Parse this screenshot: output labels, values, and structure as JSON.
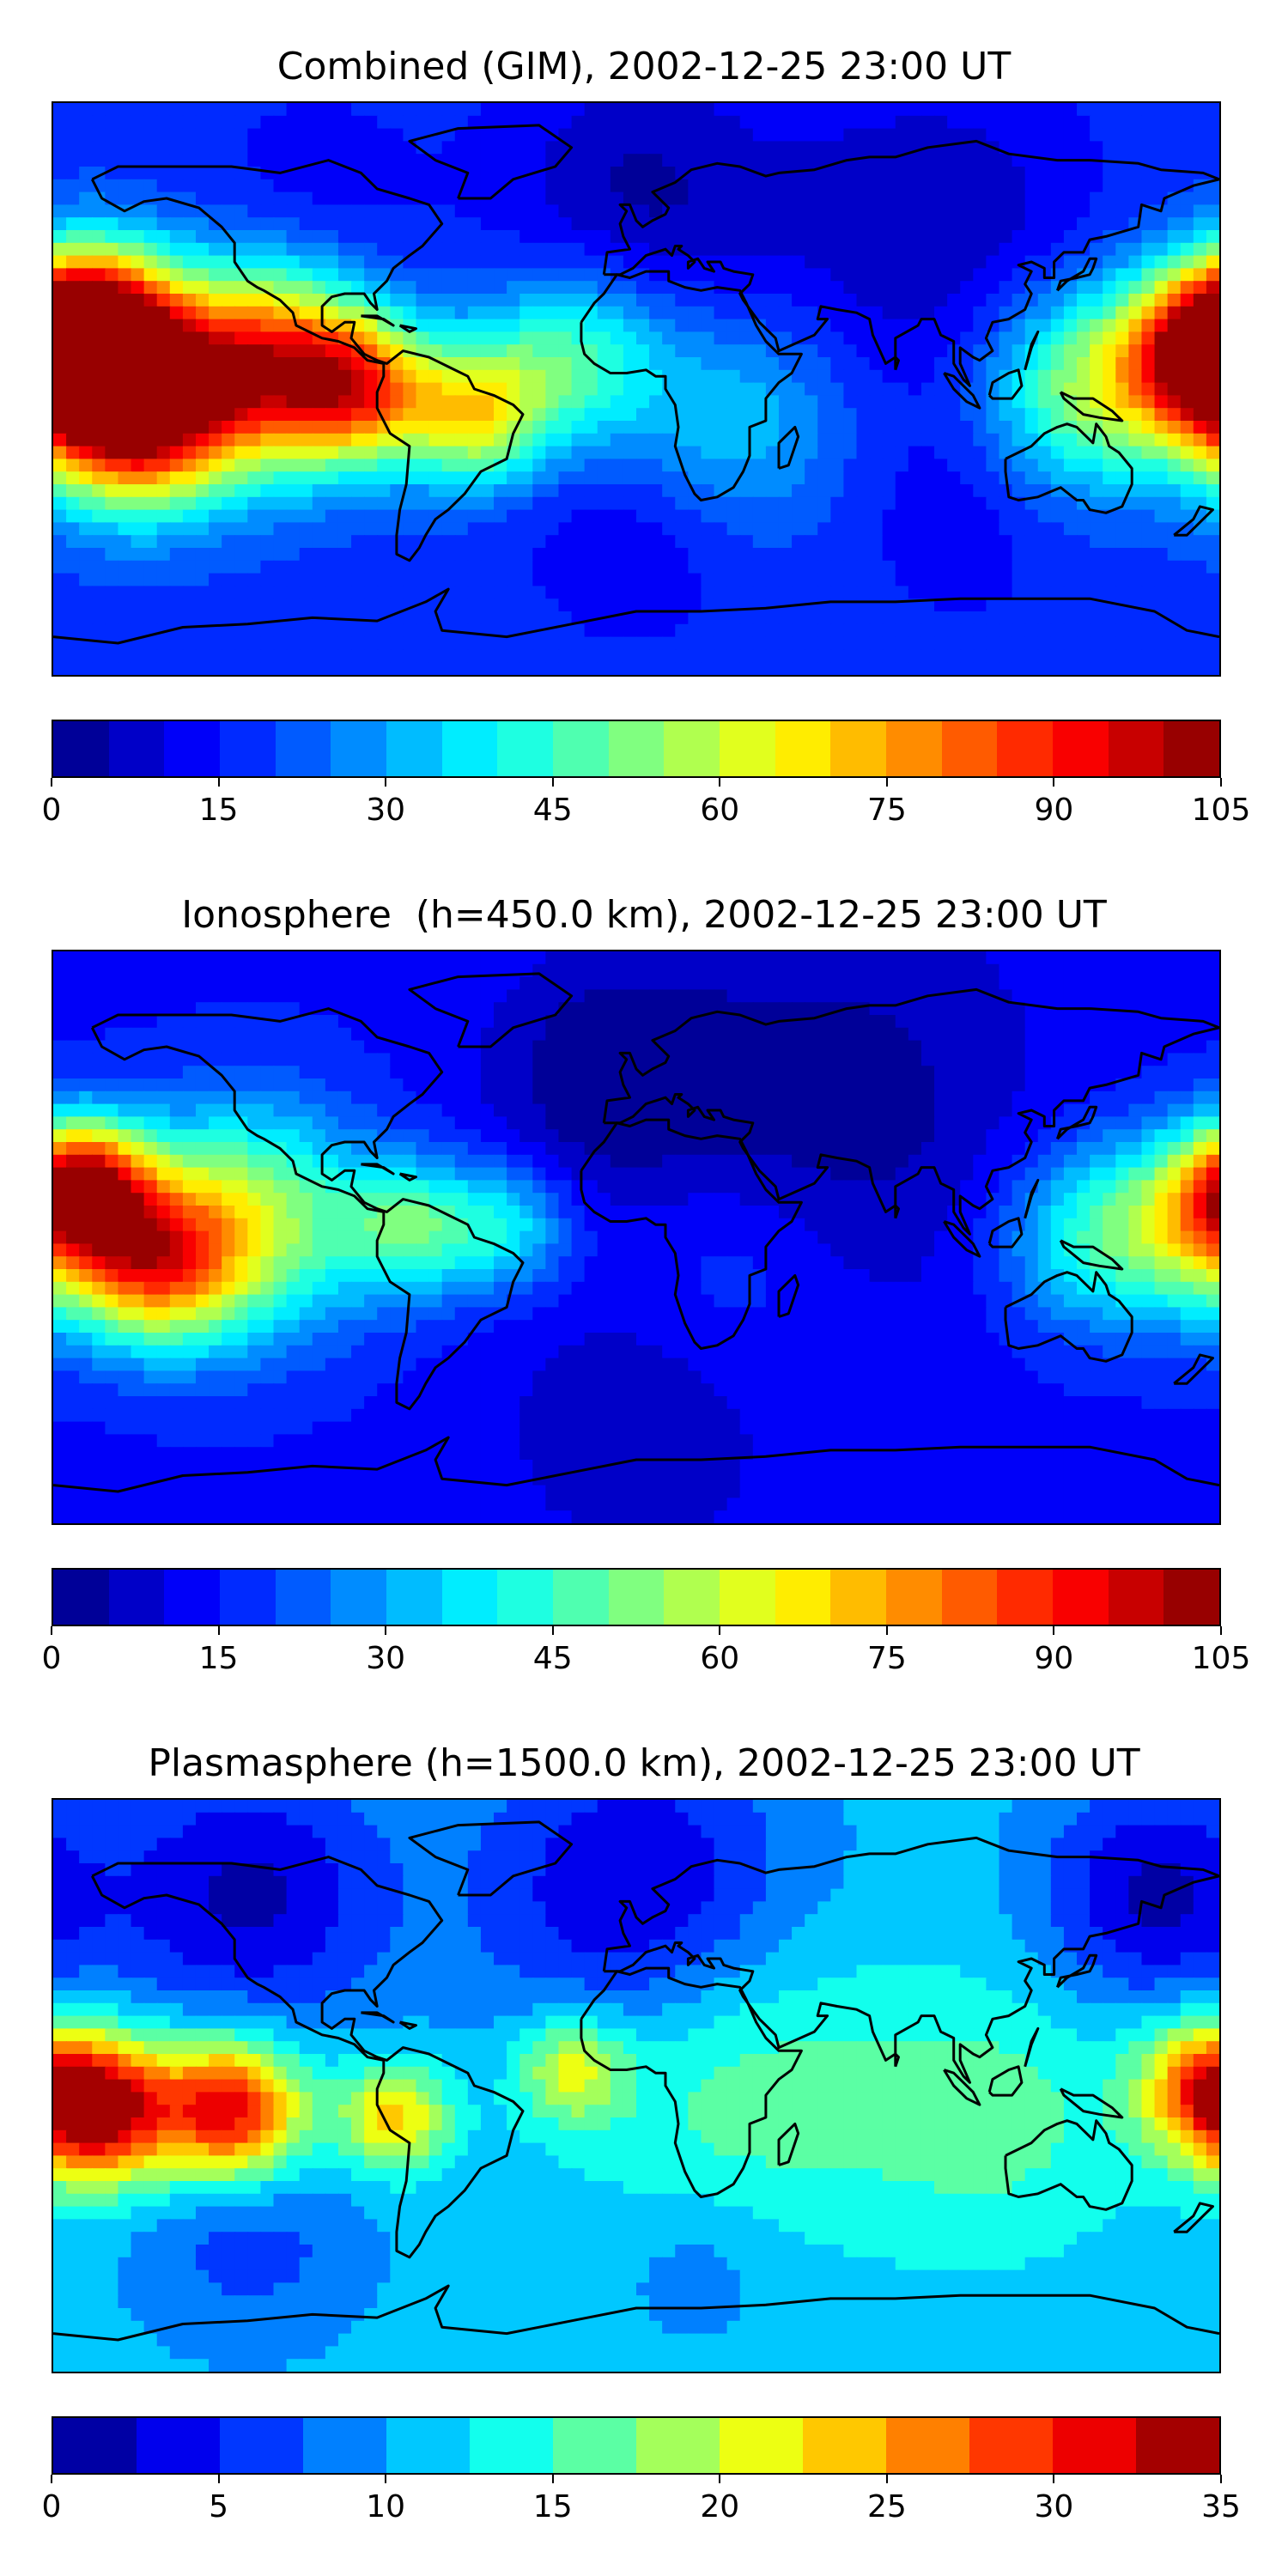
{
  "chart_data": [
    {
      "type": "heatmap",
      "title": "Combined (GIM), 2002-12-25 23:00 UT",
      "colorbar": {
        "min": 0,
        "max": 105,
        "step": 5,
        "ticks": [
          "0",
          "15",
          "30",
          "45",
          "60",
          "75",
          "90",
          "105"
        ],
        "tick_values": [
          0,
          15,
          30,
          45,
          60,
          75,
          90,
          105
        ]
      },
      "background_level": 18,
      "features": [
        {
          "lon": -167,
          "lat": 19,
          "value": 100,
          "spread": 18
        },
        {
          "lon": -155,
          "lat": -8,
          "value": 102,
          "spread": 20
        },
        {
          "lon": -115,
          "lat": 7,
          "value": 88,
          "spread": 22
        },
        {
          "lon": -85,
          "lat": 0,
          "value": 70,
          "spread": 16
        },
        {
          "lon": -50,
          "lat": -8,
          "value": 62,
          "spread": 15
        },
        {
          "lon": -20,
          "lat": 10,
          "value": 48,
          "spread": 20
        },
        {
          "lon": 175,
          "lat": 10,
          "value": 78,
          "spread": 18
        },
        {
          "lon": 140,
          "lat": 0,
          "value": 55,
          "spread": 22
        },
        {
          "lon": 30,
          "lat": -10,
          "value": 35,
          "spread": 25
        },
        {
          "lon": 90,
          "lat": 50,
          "value": 5,
          "spread": 35
        },
        {
          "lon": 0,
          "lat": 60,
          "value": 4,
          "spread": 30
        },
        {
          "lon": -100,
          "lat": 60,
          "value": 12,
          "spread": 25
        },
        {
          "lon": 0,
          "lat": -45,
          "value": 10,
          "spread": 25
        },
        {
          "lon": 100,
          "lat": -40,
          "value": 12,
          "spread": 25
        }
      ]
    },
    {
      "type": "heatmap",
      "title": "Ionosphere  (h=450.0 km), 2002-12-25 23:00 UT",
      "colorbar": {
        "min": 0,
        "max": 105,
        "step": 5,
        "ticks": [
          "0",
          "15",
          "30",
          "45",
          "60",
          "75",
          "90",
          "105"
        ],
        "tick_values": [
          0,
          15,
          30,
          45,
          60,
          75,
          90,
          105
        ]
      },
      "background_level": 14,
      "features": [
        {
          "lon": -170,
          "lat": 17,
          "value": 74,
          "spread": 14
        },
        {
          "lon": -150,
          "lat": -8,
          "value": 70,
          "spread": 18
        },
        {
          "lon": -120,
          "lat": 5,
          "value": 58,
          "spread": 25
        },
        {
          "lon": -70,
          "lat": 3,
          "value": 45,
          "spread": 15
        },
        {
          "lon": -40,
          "lat": 3,
          "value": 38,
          "spread": 14
        },
        {
          "lon": 175,
          "lat": 5,
          "value": 55,
          "spread": 20
        },
        {
          "lon": 140,
          "lat": 0,
          "value": 40,
          "spread": 20
        },
        {
          "lon": 30,
          "lat": -10,
          "value": 22,
          "spread": 25
        },
        {
          "lon": 60,
          "lat": 40,
          "value": 2,
          "spread": 45
        },
        {
          "lon": -10,
          "lat": 50,
          "value": 2,
          "spread": 25
        },
        {
          "lon": 0,
          "lat": -60,
          "value": 6,
          "spread": 30
        }
      ]
    },
    {
      "type": "heatmap",
      "title": "Plasmasphere (h=1500.0 km), 2002-12-25 23:00 UT",
      "colorbar": {
        "min": 0,
        "max": 35,
        "step": 2.5,
        "ticks": [
          "0",
          "5",
          "10",
          "15",
          "20",
          "25",
          "30",
          "35"
        ],
        "tick_values": [
          0,
          5,
          10,
          15,
          20,
          25,
          30,
          35
        ]
      },
      "background_level": 11,
      "features": [
        {
          "lon": -165,
          "lat": -8,
          "value": 33,
          "spread": 16
        },
        {
          "lon": -125,
          "lat": -8,
          "value": 33,
          "spread": 16
        },
        {
          "lon": -75,
          "lat": -10,
          "value": 24,
          "spread": 12
        },
        {
          "lon": -20,
          "lat": 5,
          "value": 21,
          "spread": 12
        },
        {
          "lon": 30,
          "lat": 0,
          "value": 17,
          "spread": 35
        },
        {
          "lon": 175,
          "lat": 0,
          "value": 25,
          "spread": 15
        },
        {
          "lon": 110,
          "lat": -10,
          "value": 16,
          "spread": 30
        },
        {
          "lon": 0,
          "lat": 60,
          "value": 2,
          "spread": 35
        },
        {
          "lon": -120,
          "lat": 60,
          "value": 2,
          "spread": 30
        },
        {
          "lon": 160,
          "lat": 60,
          "value": 2,
          "spread": 25
        },
        {
          "lon": -120,
          "lat": -45,
          "value": 6,
          "spread": 25
        },
        {
          "lon": 20,
          "lat": -55,
          "value": 8,
          "spread": 20
        }
      ]
    }
  ]
}
